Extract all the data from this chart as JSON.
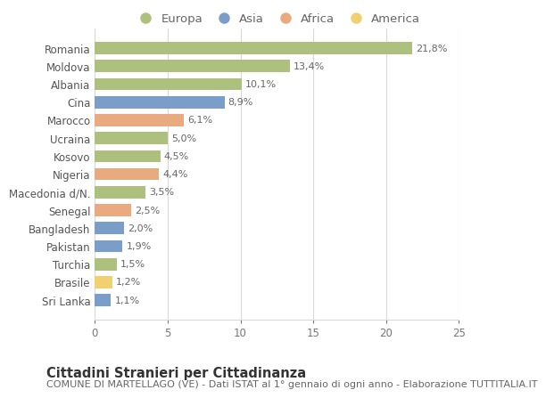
{
  "countries": [
    "Romania",
    "Moldova",
    "Albania",
    "Cina",
    "Marocco",
    "Ucraina",
    "Kosovo",
    "Nigeria",
    "Macedonia d/N.",
    "Senegal",
    "Bangladesh",
    "Pakistan",
    "Turchia",
    "Brasile",
    "Sri Lanka"
  ],
  "values": [
    21.8,
    13.4,
    10.1,
    8.9,
    6.1,
    5.0,
    4.5,
    4.4,
    3.5,
    2.5,
    2.0,
    1.9,
    1.5,
    1.2,
    1.1
  ],
  "labels": [
    "21,8%",
    "13,4%",
    "10,1%",
    "8,9%",
    "6,1%",
    "5,0%",
    "4,5%",
    "4,4%",
    "3,5%",
    "2,5%",
    "2,0%",
    "1,9%",
    "1,5%",
    "1,2%",
    "1,1%"
  ],
  "continents": [
    "Europa",
    "Europa",
    "Europa",
    "Asia",
    "Africa",
    "Europa",
    "Europa",
    "Africa",
    "Europa",
    "Africa",
    "Asia",
    "Asia",
    "Europa",
    "America",
    "Asia"
  ],
  "colors": {
    "Europa": "#aec07e",
    "Asia": "#7b9ec8",
    "Africa": "#e8aa7e",
    "America": "#f0d070"
  },
  "xlim": [
    0,
    25
  ],
  "xticks": [
    0,
    5,
    10,
    15,
    20,
    25
  ],
  "title": "Cittadini Stranieri per Cittadinanza",
  "subtitle": "COMUNE DI MARTELLAGO (VE) - Dati ISTAT al 1° gennaio di ogni anno - Elaborazione TUTTITALIA.IT",
  "background_color": "#ffffff",
  "grid_color": "#d8d8d8",
  "bar_height": 0.68,
  "title_fontsize": 10.5,
  "subtitle_fontsize": 8,
  "label_fontsize": 8,
  "tick_fontsize": 8.5,
  "legend_fontsize": 9.5
}
